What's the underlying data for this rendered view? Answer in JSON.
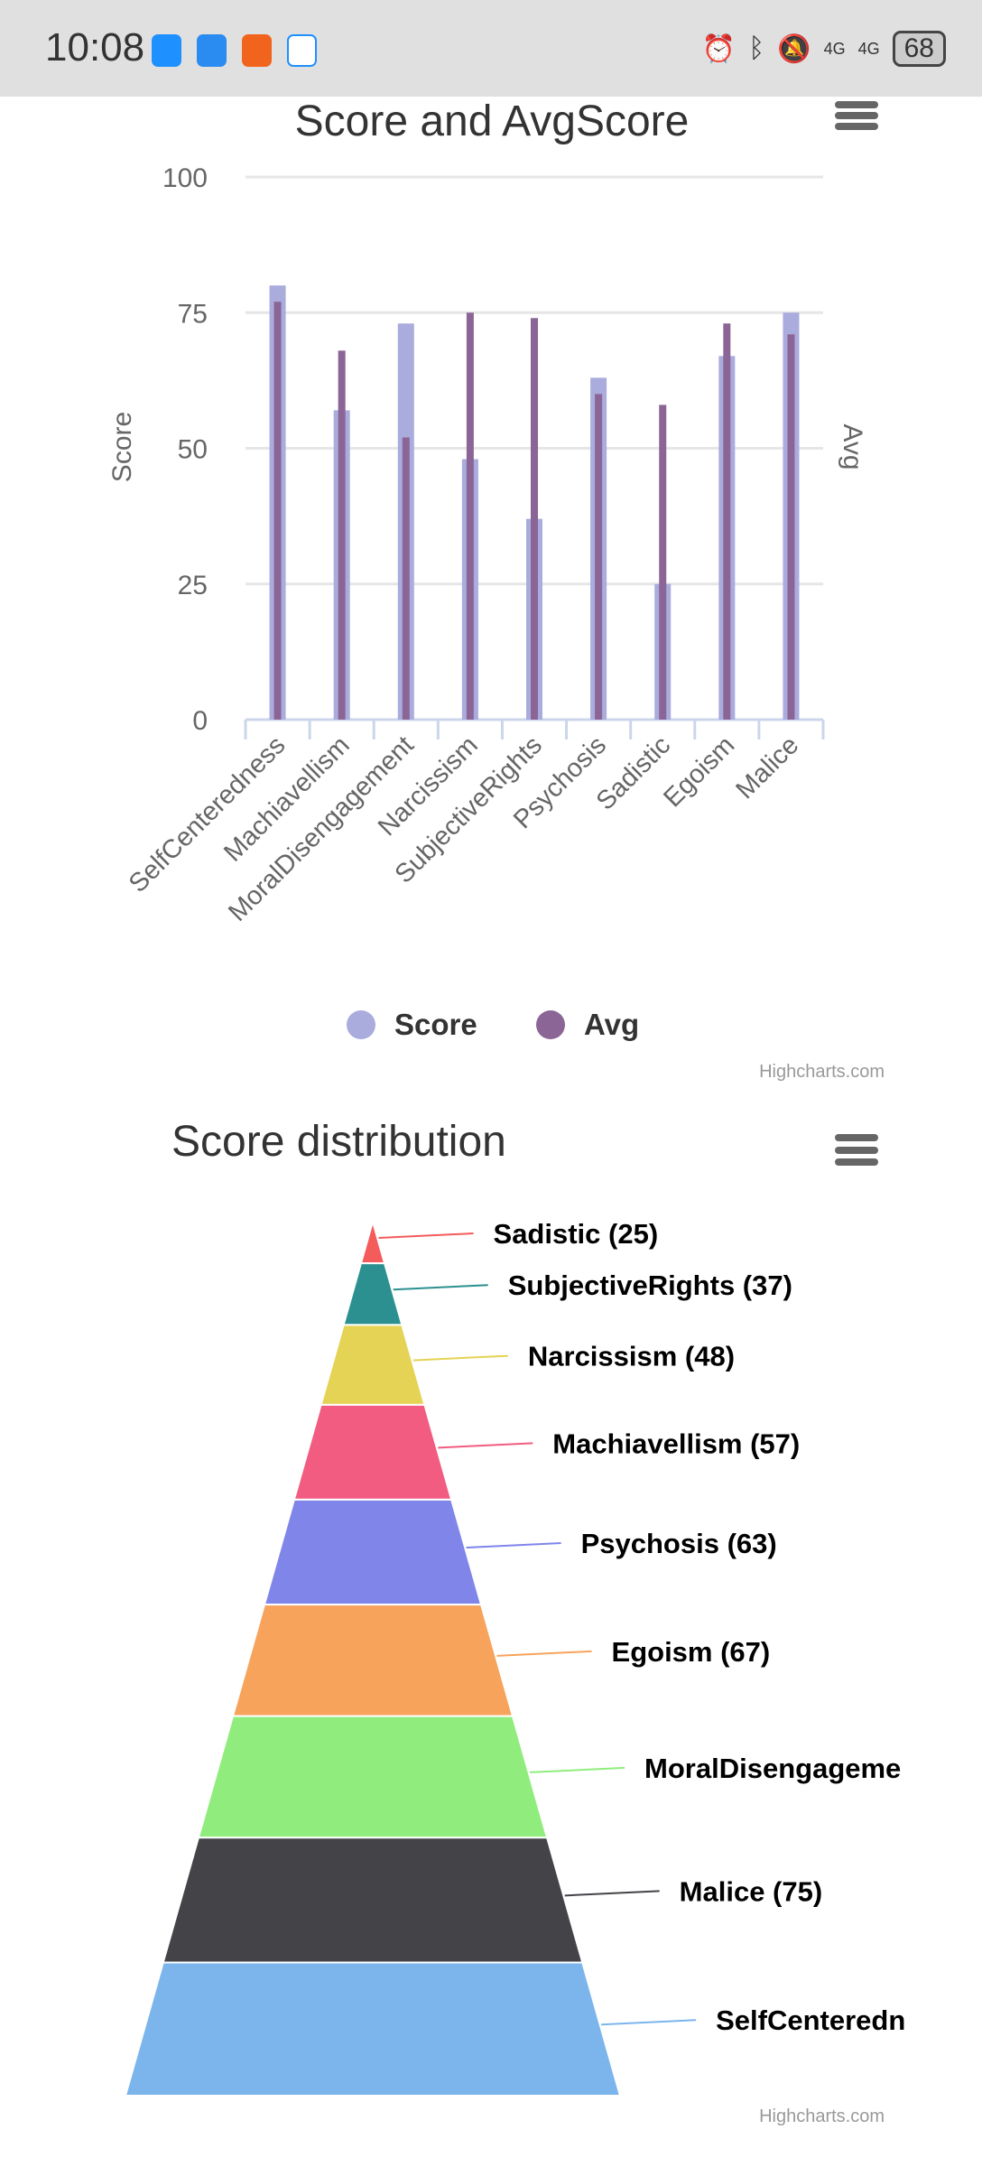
{
  "status_bar": {
    "time": "10:08",
    "battery": "68",
    "network": "4G"
  },
  "chart_data": [
    {
      "type": "bar",
      "title": "Score and AvgScore",
      "ylabel": "Score",
      "y2label": "Avg",
      "ylim": [
        0,
        100
      ],
      "yticks": [
        0,
        25,
        50,
        75,
        100
      ],
      "categories": [
        "SelfCenteredness",
        "Machiavellism",
        "MoralDisengagement",
        "Narcissism",
        "SubjectiveRights",
        "Psychosis",
        "Sadistic",
        "Egoism",
        "Malice"
      ],
      "series": [
        {
          "name": "Score",
          "color": "#a9acdd",
          "values": [
            80,
            57,
            73,
            48,
            37,
            63,
            25,
            67,
            75
          ]
        },
        {
          "name": "Avg",
          "color": "#8b6596",
          "values": [
            77,
            68,
            52,
            75,
            74,
            60,
            58,
            73,
            71
          ]
        }
      ],
      "legend": "bottom-center",
      "credits": "Highcharts.com"
    },
    {
      "type": "pyramid",
      "title": "Score distribution",
      "credits": "Highcharts.com",
      "points": [
        {
          "name": "Sadistic",
          "value": 25,
          "color": "#f45b5b",
          "label": "Sadistic (25)"
        },
        {
          "name": "SubjectiveRights",
          "value": 37,
          "color": "#2b908f",
          "label": "SubjectiveRights (37)"
        },
        {
          "name": "Narcissism",
          "value": 48,
          "color": "#e4d354",
          "label": "Narcissism (48)"
        },
        {
          "name": "Machiavellism",
          "value": 57,
          "color": "#f15c80",
          "label": "Machiavellism (57)"
        },
        {
          "name": "Psychosis",
          "value": 63,
          "color": "#8085e9",
          "label": "Psychosis (63)"
        },
        {
          "name": "Egoism",
          "value": 67,
          "color": "#f7a35c",
          "label": "Egoism (67)"
        },
        {
          "name": "MoralDisengagement",
          "value": 73,
          "color": "#90ed7d",
          "label": "MoralDisengageme"
        },
        {
          "name": "Malice",
          "value": 75,
          "color": "#434348",
          "label": "Malice (75)"
        },
        {
          "name": "SelfCenteredness",
          "value": 80,
          "color": "#7cb5ec",
          "label": "SelfCenteredn"
        }
      ]
    }
  ]
}
